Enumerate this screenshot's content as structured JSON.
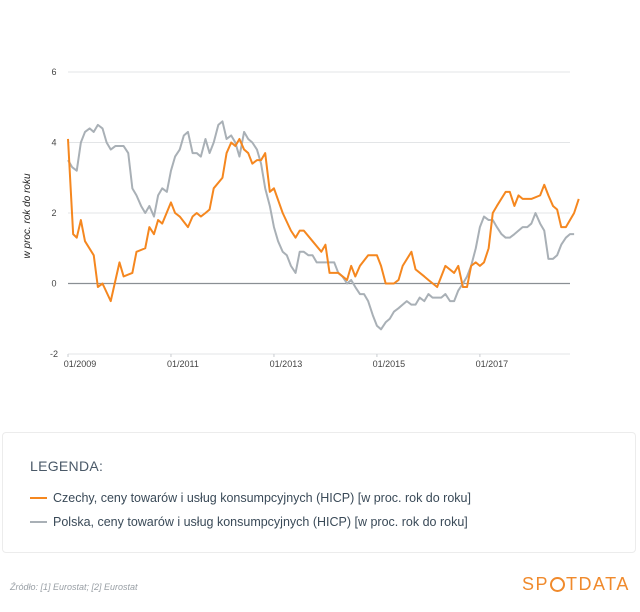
{
  "chart_data": {
    "type": "line",
    "ylabel": "w proc. rok do roku",
    "ylim": [
      -2,
      6
    ],
    "yticks": [
      "6",
      "4",
      "2",
      "0",
      "-2"
    ],
    "xlim": [
      2009.0,
      2018.75
    ],
    "xticks": [
      {
        "label": "01/2009",
        "value": 2009.0
      },
      {
        "label": "01/2011",
        "value": 2011.0
      },
      {
        "label": "01/2013",
        "value": 2013.0
      },
      {
        "label": "01/2015",
        "value": 2015.0
      },
      {
        "label": "01/2017",
        "value": 2017.0
      }
    ],
    "grid": true,
    "series": [
      {
        "name": "Czechy, ceny towarów i usług konsumpcyjnych (HICP) [w proc. rok do roku]",
        "color": "#f5871f",
        "points": [
          [
            2009.0,
            4.1
          ],
          [
            2009.1,
            1.4
          ],
          [
            2009.17,
            1.3
          ],
          [
            2009.25,
            1.8
          ],
          [
            2009.33,
            1.2
          ],
          [
            2009.5,
            0.8
          ],
          [
            2009.58,
            -0.1
          ],
          [
            2009.67,
            0.0
          ],
          [
            2009.83,
            -0.5
          ],
          [
            2010.0,
            0.6
          ],
          [
            2010.08,
            0.2
          ],
          [
            2010.25,
            0.3
          ],
          [
            2010.33,
            0.9
          ],
          [
            2010.5,
            1.0
          ],
          [
            2010.58,
            1.6
          ],
          [
            2010.67,
            1.4
          ],
          [
            2010.75,
            1.8
          ],
          [
            2010.83,
            1.7
          ],
          [
            2011.0,
            2.3
          ],
          [
            2011.08,
            2.0
          ],
          [
            2011.17,
            1.9
          ],
          [
            2011.33,
            1.6
          ],
          [
            2011.42,
            1.9
          ],
          [
            2011.5,
            2.0
          ],
          [
            2011.58,
            1.9
          ],
          [
            2011.67,
            2.0
          ],
          [
            2011.75,
            2.1
          ],
          [
            2011.83,
            2.7
          ],
          [
            2012.0,
            3.0
          ],
          [
            2012.08,
            3.7
          ],
          [
            2012.17,
            4.0
          ],
          [
            2012.25,
            3.9
          ],
          [
            2012.33,
            4.1
          ],
          [
            2012.42,
            3.8
          ],
          [
            2012.5,
            3.7
          ],
          [
            2012.58,
            3.4
          ],
          [
            2012.67,
            3.5
          ],
          [
            2012.75,
            3.5
          ],
          [
            2012.83,
            3.7
          ],
          [
            2012.92,
            2.6
          ],
          [
            2013.0,
            2.7
          ],
          [
            2013.17,
            2.0
          ],
          [
            2013.33,
            1.5
          ],
          [
            2013.42,
            1.3
          ],
          [
            2013.5,
            1.5
          ],
          [
            2013.58,
            1.5
          ],
          [
            2013.75,
            1.2
          ],
          [
            2013.92,
            0.9
          ],
          [
            2014.0,
            1.1
          ],
          [
            2014.08,
            0.3
          ],
          [
            2014.25,
            0.3
          ],
          [
            2014.42,
            0.1
          ],
          [
            2014.5,
            0.5
          ],
          [
            2014.58,
            0.2
          ],
          [
            2014.67,
            0.5
          ],
          [
            2014.83,
            0.8
          ],
          [
            2015.0,
            0.8
          ],
          [
            2015.08,
            0.5
          ],
          [
            2015.17,
            0.0
          ],
          [
            2015.33,
            0.0
          ],
          [
            2015.42,
            0.1
          ],
          [
            2015.5,
            0.5
          ],
          [
            2015.67,
            0.9
          ],
          [
            2015.75,
            0.4
          ],
          [
            2015.92,
            0.2
          ],
          [
            2016.0,
            0.1
          ],
          [
            2016.17,
            -0.1
          ],
          [
            2016.33,
            0.5
          ],
          [
            2016.5,
            0.3
          ],
          [
            2016.58,
            0.5
          ],
          [
            2016.67,
            -0.1
          ],
          [
            2016.75,
            -0.1
          ],
          [
            2016.83,
            0.5
          ],
          [
            2016.92,
            0.6
          ],
          [
            2017.0,
            0.5
          ],
          [
            2017.08,
            0.6
          ],
          [
            2017.17,
            1.0
          ],
          [
            2017.25,
            2.0
          ],
          [
            2017.33,
            2.2
          ],
          [
            2017.5,
            2.6
          ],
          [
            2017.58,
            2.6
          ],
          [
            2017.67,
            2.2
          ],
          [
            2017.75,
            2.5
          ],
          [
            2017.83,
            2.4
          ],
          [
            2018.0,
            2.4
          ],
          [
            2018.17,
            2.5
          ],
          [
            2018.25,
            2.8
          ],
          [
            2018.33,
            2.5
          ],
          [
            2018.42,
            2.2
          ],
          [
            2018.5,
            2.1
          ],
          [
            2018.58,
            1.6
          ],
          [
            2018.67,
            1.6
          ],
          [
            2018.83,
            2.0
          ],
          [
            2018.92,
            2.4
          ]
        ]
      },
      {
        "name": "Polska, ceny towarów i usług konsumpcyjnych (HICP) [w proc. rok do roku]",
        "color": "#a9b0b6",
        "points": [
          [
            2009.0,
            3.5
          ],
          [
            2009.08,
            3.3
          ],
          [
            2009.17,
            3.2
          ],
          [
            2009.25,
            4.0
          ],
          [
            2009.33,
            4.3
          ],
          [
            2009.42,
            4.4
          ],
          [
            2009.5,
            4.3
          ],
          [
            2009.58,
            4.5
          ],
          [
            2009.67,
            4.4
          ],
          [
            2009.75,
            4.0
          ],
          [
            2009.83,
            3.8
          ],
          [
            2009.92,
            3.9
          ],
          [
            2010.0,
            3.9
          ],
          [
            2010.08,
            3.9
          ],
          [
            2010.17,
            3.7
          ],
          [
            2010.25,
            2.7
          ],
          [
            2010.33,
            2.5
          ],
          [
            2010.42,
            2.2
          ],
          [
            2010.5,
            2.0
          ],
          [
            2010.58,
            2.2
          ],
          [
            2010.67,
            1.9
          ],
          [
            2010.75,
            2.5
          ],
          [
            2010.83,
            2.7
          ],
          [
            2010.92,
            2.6
          ],
          [
            2011.0,
            3.2
          ],
          [
            2011.08,
            3.6
          ],
          [
            2011.17,
            3.8
          ],
          [
            2011.25,
            4.2
          ],
          [
            2011.33,
            4.3
          ],
          [
            2011.42,
            3.7
          ],
          [
            2011.5,
            3.7
          ],
          [
            2011.58,
            3.6
          ],
          [
            2011.67,
            4.1
          ],
          [
            2011.75,
            3.7
          ],
          [
            2011.83,
            4.0
          ],
          [
            2011.92,
            4.5
          ],
          [
            2012.0,
            4.6
          ],
          [
            2012.08,
            4.1
          ],
          [
            2012.17,
            4.2
          ],
          [
            2012.25,
            4.0
          ],
          [
            2012.33,
            3.6
          ],
          [
            2012.42,
            4.3
          ],
          [
            2012.5,
            4.1
          ],
          [
            2012.58,
            4.0
          ],
          [
            2012.67,
            3.8
          ],
          [
            2012.75,
            3.4
          ],
          [
            2012.83,
            2.7
          ],
          [
            2012.92,
            2.2
          ],
          [
            2013.0,
            1.6
          ],
          [
            2013.08,
            1.2
          ],
          [
            2013.17,
            0.9
          ],
          [
            2013.25,
            0.8
          ],
          [
            2013.33,
            0.5
          ],
          [
            2013.42,
            0.3
          ],
          [
            2013.5,
            0.9
          ],
          [
            2013.58,
            0.9
          ],
          [
            2013.67,
            0.8
          ],
          [
            2013.75,
            0.8
          ],
          [
            2013.83,
            0.6
          ],
          [
            2013.92,
            0.6
          ],
          [
            2014.0,
            0.6
          ],
          [
            2014.08,
            0.6
          ],
          [
            2014.17,
            0.6
          ],
          [
            2014.25,
            0.3
          ],
          [
            2014.33,
            0.2
          ],
          [
            2014.42,
            0.0
          ],
          [
            2014.5,
            0.1
          ],
          [
            2014.58,
            -0.1
          ],
          [
            2014.67,
            -0.3
          ],
          [
            2014.75,
            -0.3
          ],
          [
            2014.83,
            -0.5
          ],
          [
            2014.92,
            -0.9
          ],
          [
            2015.0,
            -1.2
          ],
          [
            2015.08,
            -1.3
          ],
          [
            2015.17,
            -1.1
          ],
          [
            2015.25,
            -1.0
          ],
          [
            2015.33,
            -0.8
          ],
          [
            2015.42,
            -0.7
          ],
          [
            2015.5,
            -0.6
          ],
          [
            2015.58,
            -0.5
          ],
          [
            2015.67,
            -0.6
          ],
          [
            2015.75,
            -0.6
          ],
          [
            2015.83,
            -0.4
          ],
          [
            2015.92,
            -0.5
          ],
          [
            2016.0,
            -0.3
          ],
          [
            2016.08,
            -0.4
          ],
          [
            2016.17,
            -0.4
          ],
          [
            2016.25,
            -0.4
          ],
          [
            2016.33,
            -0.3
          ],
          [
            2016.42,
            -0.5
          ],
          [
            2016.5,
            -0.5
          ],
          [
            2016.58,
            -0.2
          ],
          [
            2016.67,
            0.0
          ],
          [
            2016.75,
            0.2
          ],
          [
            2016.83,
            0.5
          ],
          [
            2016.92,
            1.0
          ],
          [
            2017.0,
            1.6
          ],
          [
            2017.08,
            1.9
          ],
          [
            2017.17,
            1.8
          ],
          [
            2017.25,
            1.8
          ],
          [
            2017.33,
            1.6
          ],
          [
            2017.42,
            1.4
          ],
          [
            2017.5,
            1.3
          ],
          [
            2017.58,
            1.3
          ],
          [
            2017.67,
            1.4
          ],
          [
            2017.75,
            1.5
          ],
          [
            2017.83,
            1.6
          ],
          [
            2017.92,
            1.6
          ],
          [
            2018.0,
            1.7
          ],
          [
            2018.08,
            2.0
          ],
          [
            2018.17,
            1.7
          ],
          [
            2018.25,
            1.5
          ],
          [
            2018.33,
            0.7
          ],
          [
            2018.42,
            0.7
          ],
          [
            2018.5,
            0.8
          ],
          [
            2018.58,
            1.1
          ],
          [
            2018.67,
            1.3
          ],
          [
            2018.75,
            1.4
          ],
          [
            2018.83,
            1.4
          ]
        ]
      }
    ]
  },
  "legend": {
    "title": "LEGENDA:",
    "items": [
      {
        "label": "Czechy, ceny towarów i usług konsumpcyjnych (HICP) [w proc. rok do roku]",
        "color": "#f5871f"
      },
      {
        "label": "Polska, ceny towarów i usług konsumpcyjnych (HICP) [w proc. rok do roku]",
        "color": "#a9b0b6"
      }
    ]
  },
  "footer": {
    "source": "Źródło: [1] Eurostat; [2] Eurostat",
    "logo_left": "SP",
    "logo_right": "TDATA",
    "logo_color": "#f08a2c"
  }
}
